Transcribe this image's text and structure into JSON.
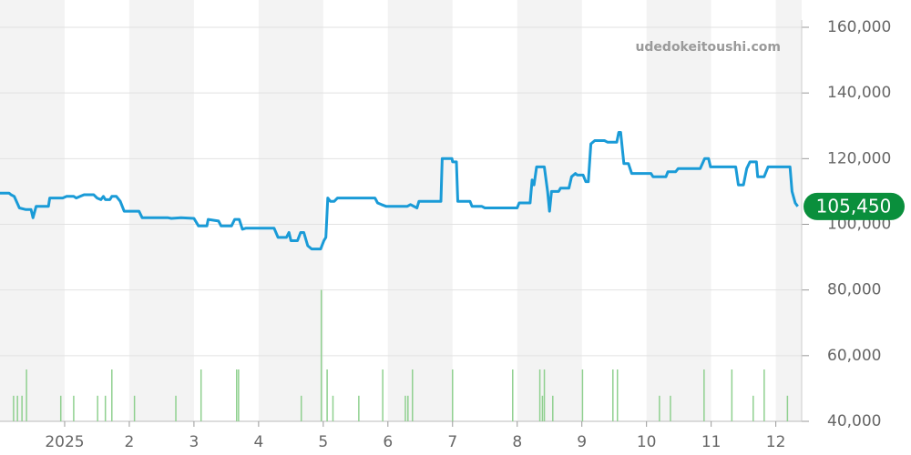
{
  "chart_data": {
    "type": "line",
    "watermark": "udedokeitoushi.com",
    "xlim": [
      0,
      12.4
    ],
    "xticks": [
      {
        "value": 1,
        "label": "2025"
      },
      2,
      3,
      4,
      5,
      6,
      7,
      8,
      9,
      10,
      11,
      12
    ],
    "ylim": [
      40000,
      160000
    ],
    "yticks": [
      {
        "value": 40000,
        "label": "40,000"
      },
      {
        "value": 60000,
        "label": "60,000"
      },
      {
        "value": 80000,
        "label": "80,000"
      },
      {
        "value": 100000,
        "label": "100,000"
      },
      {
        "value": 120000,
        "label": "120,000"
      },
      {
        "value": 140000,
        "label": "140,000"
      },
      {
        "value": 160000,
        "label": "160,000"
      }
    ],
    "grid": true,
    "line": {
      "color": "#1a9bd7",
      "x": [
        0,
        0.14,
        0.17,
        0.22,
        0.3,
        0.4,
        0.48,
        0.51,
        0.56,
        0.75,
        0.77,
        0.97,
        1.03,
        1.14,
        1.18,
        1.24,
        1.3,
        1.45,
        1.5,
        1.56,
        1.6,
        1.63,
        1.7,
        1.73,
        1.8,
        1.86,
        1.92,
        2.15,
        2.2,
        2.6,
        2.65,
        2.8,
        3.0,
        3.07,
        3.2,
        3.22,
        3.38,
        3.42,
        3.58,
        3.63,
        3.7,
        3.75,
        3.8,
        4.24,
        4.3,
        4.43,
        4.47,
        4.5,
        4.6,
        4.65,
        4.7,
        4.76,
        4.82,
        4.96,
        5.01,
        5.04,
        5.07,
        5.11,
        5.17,
        5.22,
        5.8,
        5.84,
        5.9,
        5.97,
        6.3,
        6.35,
        6.45,
        6.48,
        6.82,
        6.84,
        6.99,
        7.0,
        7.06,
        7.08,
        7.27,
        7.3,
        7.45,
        7.5,
        8.0,
        8.03,
        8.2,
        8.23,
        8.26,
        8.3,
        8.42,
        8.47,
        8.5,
        8.53,
        8.64,
        8.67,
        8.8,
        8.84,
        8.9,
        8.93,
        9.02,
        9.06,
        9.1,
        9.14,
        9.2,
        9.35,
        9.4,
        9.54,
        9.57,
        9.6,
        9.65,
        9.72,
        9.77,
        10.07,
        10.1,
        10.3,
        10.33,
        10.45,
        10.49,
        10.83,
        10.9,
        10.96,
        10.99,
        11.38,
        11.42,
        11.5,
        11.55,
        11.6,
        11.7,
        11.72,
        11.82,
        11.88,
        12.22,
        12.25,
        12.3,
        12.34
      ],
      "values": [
        109500,
        109500,
        109000,
        108500,
        105000,
        104500,
        104500,
        102000,
        105500,
        105500,
        108000,
        108000,
        108500,
        108500,
        108000,
        108500,
        109000,
        109000,
        108000,
        107500,
        108500,
        107500,
        107500,
        108500,
        108500,
        107000,
        104000,
        104000,
        102000,
        102000,
        101800,
        102000,
        101800,
        99500,
        99500,
        101500,
        101000,
        99500,
        99500,
        101500,
        101500,
        98500,
        98800,
        98800,
        96000,
        96000,
        97500,
        95000,
        95000,
        97500,
        97500,
        93500,
        92500,
        92500,
        95000,
        96000,
        108000,
        107000,
        107000,
        108000,
        108000,
        106500,
        106000,
        105500,
        105500,
        106000,
        105000,
        107000,
        107000,
        120000,
        120000,
        119000,
        119000,
        107000,
        107000,
        105500,
        105500,
        105000,
        105000,
        106500,
        106500,
        113500,
        112000,
        117500,
        117500,
        110000,
        104000,
        110000,
        110000,
        111000,
        111000,
        114500,
        115500,
        115000,
        115000,
        113000,
        113000,
        124500,
        125500,
        125500,
        125000,
        125000,
        128000,
        128000,
        118500,
        118500,
        115500,
        115500,
        114500,
        114500,
        116000,
        116000,
        117000,
        117000,
        120000,
        120000,
        117500,
        117500,
        112000,
        112000,
        117000,
        119000,
        119000,
        114500,
        114500,
        117500,
        117500,
        110000,
        106500,
        105450
      ]
    },
    "bars": {
      "color": "#8fd08f",
      "x": [
        0.21,
        0.27,
        0.34,
        0.41,
        0.94,
        1.14,
        1.51,
        1.63,
        1.73,
        2.08,
        2.72,
        3.11,
        3.66,
        3.69,
        4.66,
        4.97,
        5.06,
        5.15,
        5.55,
        5.92,
        6.27,
        6.31,
        6.38,
        7.0,
        7.93,
        8.35,
        8.39,
        8.42,
        8.55,
        9.01,
        9.48,
        9.55,
        10.2,
        10.37,
        10.89,
        11.32,
        11.65,
        11.82,
        12.18
      ],
      "values": [
        47800,
        47800,
        47800,
        55800,
        47800,
        47800,
        47800,
        47800,
        55800,
        47800,
        47800,
        55800,
        55800,
        55800,
        47800,
        80000,
        55800,
        47800,
        47800,
        55800,
        47800,
        47800,
        55800,
        55800,
        55800,
        55800,
        47800,
        55800,
        47800,
        55800,
        55800,
        55800,
        47800,
        47800,
        55800,
        55800,
        47800,
        55800,
        47800
      ]
    },
    "current": {
      "value": 105450,
      "label": "105,450"
    }
  }
}
